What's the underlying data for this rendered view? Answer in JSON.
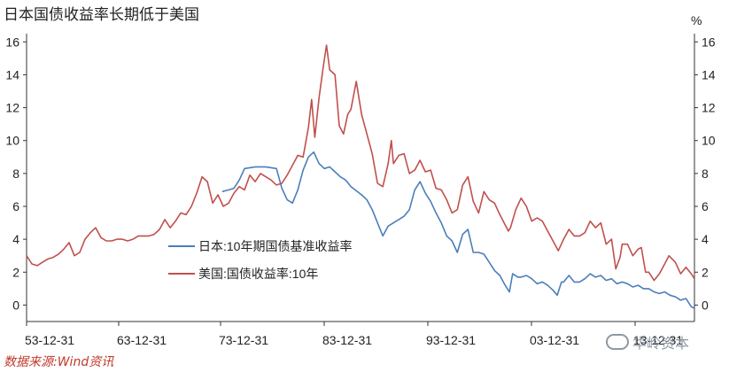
{
  "title": "日本国债收益率长期低于美国",
  "source": "数据来源:Wind资讯",
  "watermark": "华岭资本",
  "chart_data": {
    "type": "line",
    "unit": "%",
    "x_ticks": [
      "53-12-31",
      "63-12-31",
      "73-12-31",
      "83-12-31",
      "93-12-31",
      "03-12-31",
      "13-12-31"
    ],
    "xlim": [
      1953.5,
      2016.3
    ],
    "ylim": [
      -1,
      16.5
    ],
    "y_ticks": [
      0,
      2,
      4,
      6,
      8,
      10,
      12,
      14,
      16
    ],
    "legend_placement": "lower-center",
    "series": [
      {
        "name": "日本:10年期国债基准收益率",
        "color": "#4a7ebb",
        "points": [
          [
            1971.9,
            6.9
          ],
          [
            1972.5,
            7.0
          ],
          [
            1973.0,
            7.1
          ],
          [
            1973.5,
            7.6
          ],
          [
            1974.0,
            8.3
          ],
          [
            1975.0,
            8.4
          ],
          [
            1976.0,
            8.4
          ],
          [
            1977.0,
            8.3
          ],
          [
            1977.5,
            7.1
          ],
          [
            1978.0,
            6.4
          ],
          [
            1978.5,
            6.2
          ],
          [
            1979.0,
            7.0
          ],
          [
            1979.5,
            8.2
          ],
          [
            1980.0,
            9.0
          ],
          [
            1980.5,
            9.3
          ],
          [
            1981.0,
            8.6
          ],
          [
            1981.5,
            8.3
          ],
          [
            1982.0,
            8.4
          ],
          [
            1982.5,
            8.1
          ],
          [
            1983.0,
            7.8
          ],
          [
            1983.5,
            7.6
          ],
          [
            1984.0,
            7.2
          ],
          [
            1985.0,
            6.7
          ],
          [
            1985.5,
            6.4
          ],
          [
            1986.0,
            5.8
          ],
          [
            1986.5,
            5.0
          ],
          [
            1987.0,
            4.2
          ],
          [
            1987.5,
            4.8
          ],
          [
            1988.0,
            5.0
          ],
          [
            1988.5,
            5.2
          ],
          [
            1989.0,
            5.4
          ],
          [
            1989.5,
            5.8
          ],
          [
            1990.0,
            7.0
          ],
          [
            1990.5,
            7.5
          ],
          [
            1991.0,
            6.8
          ],
          [
            1991.5,
            6.3
          ],
          [
            1992.0,
            5.6
          ],
          [
            1992.5,
            5.0
          ],
          [
            1993.0,
            4.2
          ],
          [
            1993.5,
            3.9
          ],
          [
            1994.0,
            3.2
          ],
          [
            1994.5,
            4.3
          ],
          [
            1995.0,
            4.6
          ],
          [
            1995.5,
            3.2
          ],
          [
            1996.0,
            3.2
          ],
          [
            1996.5,
            3.1
          ],
          [
            1997.0,
            2.6
          ],
          [
            1997.5,
            2.1
          ],
          [
            1998.0,
            1.8
          ],
          [
            1998.5,
            1.2
          ],
          [
            1998.9,
            0.8
          ],
          [
            1999.2,
            1.9
          ],
          [
            1999.7,
            1.7
          ],
          [
            2000.0,
            1.7
          ],
          [
            2000.5,
            1.8
          ],
          [
            2001.0,
            1.6
          ],
          [
            2001.5,
            1.3
          ],
          [
            2002.0,
            1.4
          ],
          [
            2002.5,
            1.2
          ],
          [
            2003.0,
            0.9
          ],
          [
            2003.4,
            0.6
          ],
          [
            2003.8,
            1.4
          ],
          [
            2004.0,
            1.4
          ],
          [
            2004.5,
            1.8
          ],
          [
            2005.0,
            1.4
          ],
          [
            2005.5,
            1.4
          ],
          [
            2006.0,
            1.6
          ],
          [
            2006.5,
            1.9
          ],
          [
            2007.0,
            1.7
          ],
          [
            2007.5,
            1.8
          ],
          [
            2008.0,
            1.5
          ],
          [
            2008.5,
            1.6
          ],
          [
            2009.0,
            1.3
          ],
          [
            2009.5,
            1.4
          ],
          [
            2010.0,
            1.3
          ],
          [
            2010.5,
            1.1
          ],
          [
            2011.0,
            1.2
          ],
          [
            2011.5,
            1.0
          ],
          [
            2012.0,
            1.0
          ],
          [
            2012.5,
            0.8
          ],
          [
            2013.0,
            0.7
          ],
          [
            2013.5,
            0.8
          ],
          [
            2014.0,
            0.6
          ],
          [
            2014.5,
            0.5
          ],
          [
            2015.0,
            0.3
          ],
          [
            2015.5,
            0.4
          ],
          [
            2016.0,
            -0.1
          ],
          [
            2016.3,
            -0.2
          ]
        ]
      },
      {
        "name": "美国:国债收益率:10年",
        "color": "#c0504d",
        "points": [
          [
            1953.5,
            3.0
          ],
          [
            1954.0,
            2.5
          ],
          [
            1954.5,
            2.4
          ],
          [
            1955.0,
            2.6
          ],
          [
            1955.5,
            2.8
          ],
          [
            1956.0,
            2.9
          ],
          [
            1956.5,
            3.1
          ],
          [
            1957.0,
            3.4
          ],
          [
            1957.5,
            3.8
          ],
          [
            1958.0,
            3.0
          ],
          [
            1958.5,
            3.2
          ],
          [
            1959.0,
            4.0
          ],
          [
            1959.5,
            4.4
          ],
          [
            1960.0,
            4.7
          ],
          [
            1960.5,
            4.1
          ],
          [
            1961.0,
            3.9
          ],
          [
            1961.5,
            3.9
          ],
          [
            1962.0,
            4.0
          ],
          [
            1962.5,
            4.0
          ],
          [
            1963.0,
            3.9
          ],
          [
            1963.5,
            4.0
          ],
          [
            1964.0,
            4.2
          ],
          [
            1964.5,
            4.2
          ],
          [
            1965.0,
            4.2
          ],
          [
            1965.5,
            4.3
          ],
          [
            1966.0,
            4.6
          ],
          [
            1966.5,
            5.2
          ],
          [
            1967.0,
            4.7
          ],
          [
            1967.5,
            5.1
          ],
          [
            1968.0,
            5.6
          ],
          [
            1968.5,
            5.5
          ],
          [
            1969.0,
            6.0
          ],
          [
            1969.5,
            6.8
          ],
          [
            1970.0,
            7.8
          ],
          [
            1970.5,
            7.5
          ],
          [
            1971.0,
            6.2
          ],
          [
            1971.5,
            6.7
          ],
          [
            1972.0,
            6.0
          ],
          [
            1972.5,
            6.2
          ],
          [
            1973.0,
            6.8
          ],
          [
            1973.5,
            7.2
          ],
          [
            1974.0,
            7.0
          ],
          [
            1974.5,
            7.9
          ],
          [
            1975.0,
            7.5
          ],
          [
            1975.5,
            8.0
          ],
          [
            1976.0,
            7.8
          ],
          [
            1976.5,
            7.6
          ],
          [
            1977.0,
            7.3
          ],
          [
            1977.5,
            7.4
          ],
          [
            1978.0,
            7.9
          ],
          [
            1978.5,
            8.5
          ],
          [
            1979.0,
            9.1
          ],
          [
            1979.5,
            9.0
          ],
          [
            1980.0,
            10.8
          ],
          [
            1980.3,
            12.5
          ],
          [
            1980.6,
            10.2
          ],
          [
            1981.0,
            12.6
          ],
          [
            1981.4,
            14.5
          ],
          [
            1981.7,
            15.8
          ],
          [
            1982.0,
            14.3
          ],
          [
            1982.5,
            14.0
          ],
          [
            1982.9,
            10.9
          ],
          [
            1983.3,
            10.4
          ],
          [
            1983.7,
            11.6
          ],
          [
            1984.0,
            11.9
          ],
          [
            1984.5,
            13.6
          ],
          [
            1985.0,
            11.6
          ],
          [
            1985.5,
            10.4
          ],
          [
            1986.0,
            9.2
          ],
          [
            1986.5,
            7.4
          ],
          [
            1987.0,
            7.2
          ],
          [
            1987.5,
            8.6
          ],
          [
            1987.8,
            10.0
          ],
          [
            1988.0,
            8.6
          ],
          [
            1988.5,
            9.1
          ],
          [
            1989.0,
            9.2
          ],
          [
            1989.5,
            8.0
          ],
          [
            1990.0,
            8.2
          ],
          [
            1990.5,
            8.8
          ],
          [
            1991.0,
            8.1
          ],
          [
            1991.5,
            8.2
          ],
          [
            1992.0,
            7.1
          ],
          [
            1992.5,
            7.0
          ],
          [
            1993.0,
            6.4
          ],
          [
            1993.5,
            5.6
          ],
          [
            1994.0,
            5.8
          ],
          [
            1994.5,
            7.3
          ],
          [
            1995.0,
            7.8
          ],
          [
            1995.5,
            6.3
          ],
          [
            1996.0,
            5.6
          ],
          [
            1996.5,
            6.9
          ],
          [
            1997.0,
            6.4
          ],
          [
            1997.5,
            6.2
          ],
          [
            1998.0,
            5.5
          ],
          [
            1998.8,
            4.5
          ],
          [
            1999.0,
            4.7
          ],
          [
            1999.5,
            5.8
          ],
          [
            2000.0,
            6.5
          ],
          [
            2000.5,
            6.0
          ],
          [
            2001.0,
            5.1
          ],
          [
            2001.5,
            5.3
          ],
          [
            2002.0,
            5.1
          ],
          [
            2002.5,
            4.5
          ],
          [
            2003.0,
            3.9
          ],
          [
            2003.5,
            3.3
          ],
          [
            2004.0,
            4.0
          ],
          [
            2004.5,
            4.6
          ],
          [
            2005.0,
            4.2
          ],
          [
            2005.5,
            4.2
          ],
          [
            2006.0,
            4.4
          ],
          [
            2006.5,
            5.1
          ],
          [
            2007.0,
            4.7
          ],
          [
            2007.5,
            5.0
          ],
          [
            2008.0,
            3.7
          ],
          [
            2008.5,
            4.0
          ],
          [
            2008.9,
            2.2
          ],
          [
            2009.3,
            2.9
          ],
          [
            2009.5,
            3.7
          ],
          [
            2010.0,
            3.7
          ],
          [
            2010.5,
            3.0
          ],
          [
            2011.0,
            3.4
          ],
          [
            2011.3,
            3.5
          ],
          [
            2011.7,
            2.0
          ],
          [
            2012.0,
            2.0
          ],
          [
            2012.5,
            1.5
          ],
          [
            2013.0,
            1.9
          ],
          [
            2013.5,
            2.5
          ],
          [
            2013.9,
            3.0
          ],
          [
            2014.5,
            2.6
          ],
          [
            2015.0,
            1.9
          ],
          [
            2015.5,
            2.3
          ],
          [
            2016.0,
            1.9
          ],
          [
            2016.3,
            1.6
          ]
        ]
      }
    ]
  }
}
